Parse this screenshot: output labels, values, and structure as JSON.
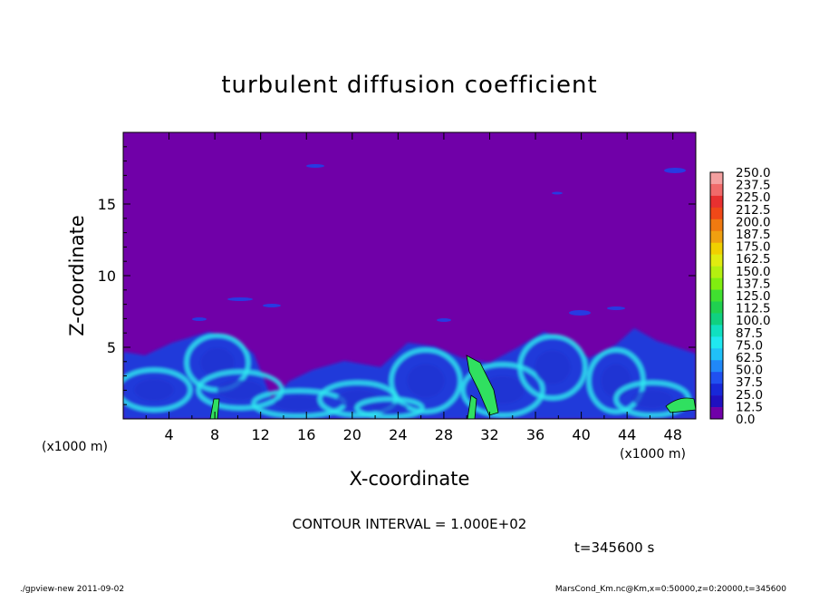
{
  "chart_data": {
    "type": "heatmap",
    "title": "turbulent diffusion coefficient",
    "xlabel": "X-coordinate",
    "ylabel": "Z-coordinate",
    "x_unit": "(x1000 m)",
    "x_ticks": [
      4,
      8,
      12,
      16,
      20,
      24,
      28,
      32,
      36,
      40,
      44,
      48
    ],
    "y_ticks": [
      5,
      10,
      15
    ],
    "xlim": [
      0,
      50
    ],
    "ylim": [
      0,
      20
    ],
    "contour_interval": "CONTOUR INTERVAL = 1.000E+02",
    "time_label": "t=345600 s",
    "colorbar": {
      "labels": [
        "250.0",
        "237.5",
        "225.0",
        "212.5",
        "200.0",
        "187.5",
        "175.0",
        "162.5",
        "150.0",
        "137.5",
        "125.0",
        "112.5",
        "100.0",
        "87.5",
        "75.0",
        "62.5",
        "50.0",
        "37.5",
        "25.0",
        "12.5",
        "0.0"
      ],
      "colors": [
        "#f4a0a0",
        "#f06a6a",
        "#e83030",
        "#f04818",
        "#f07a10",
        "#f0a010",
        "#f0d000",
        "#e0ec10",
        "#b4f010",
        "#80ee10",
        "#40e030",
        "#20d050",
        "#10d080",
        "#10e0c0",
        "#20e8f0",
        "#20c0f8",
        "#2088f8",
        "#2050f0",
        "#1828d8",
        "#2010c0",
        "#7000a8"
      ]
    },
    "field_background": "#7000a8",
    "turbulent_layer_top_km": 5.5
  },
  "footer": {
    "left": "./gpview-new  2011-09-02",
    "right": "MarsCond_Km.nc@Km,x=0:50000,z=0:20000,t=345600"
  }
}
